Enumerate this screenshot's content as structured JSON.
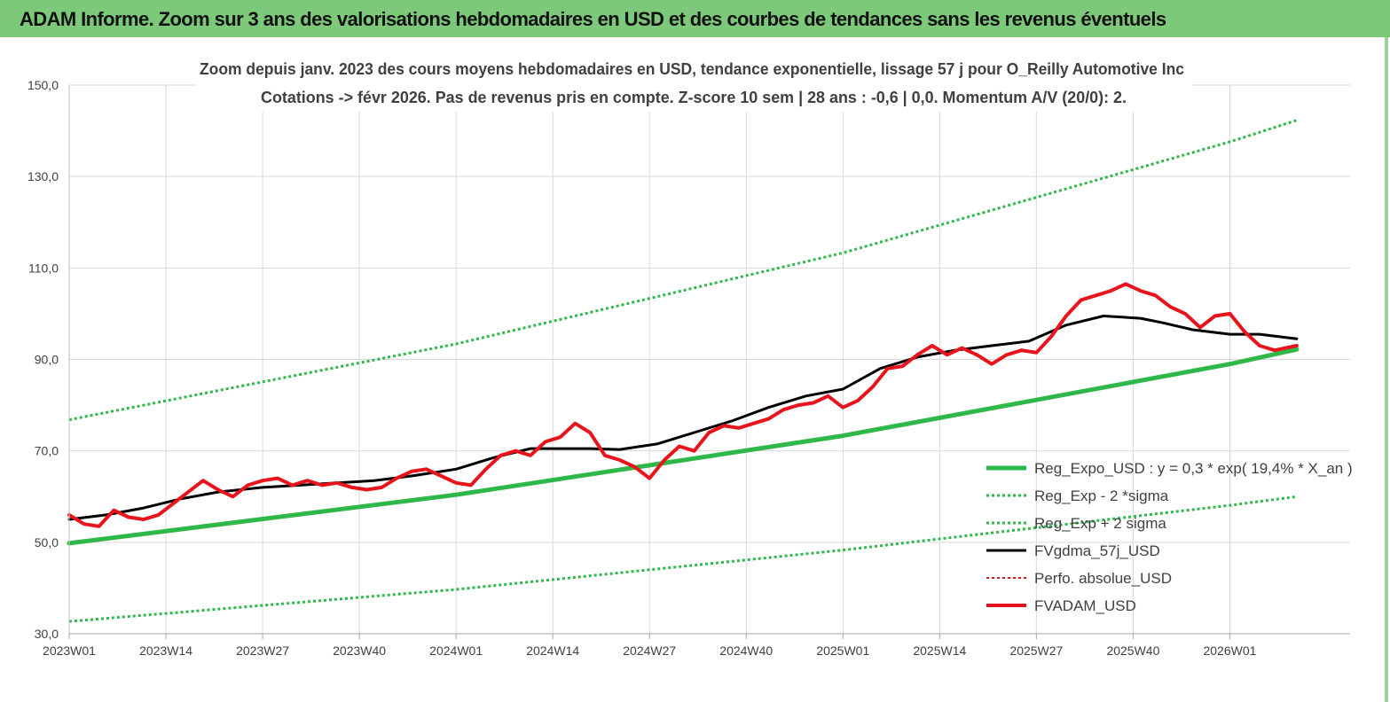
{
  "banner": {
    "title": "ADAM Informe. Zoom sur 3 ans des valorisations hebdomadaires en USD et des courbes de tendances sans les revenus éventuels"
  },
  "colors": {
    "banner_bg": "#7dc97a",
    "trend_green": "#2fb84a",
    "gdma_black": "#000000",
    "adam_red": "#e8141b",
    "grid": "#d9d9d9"
  },
  "chart_data": {
    "type": "line",
    "title_line1": "Zoom depuis janv. 2023 des cours moyens hebdomadaires en USD, tendance exponentielle, lissage 57 j pour O_Reilly Automotive Inc",
    "title_line2": "Cotations -> févr 2026. Pas de revenus pris en compte. Z-score 10 sem  | 28 ans : -0,6 | 0,0. Momentum A/V (20/0): 2.",
    "xlabel": "",
    "ylabel": "",
    "ylim": [
      30,
      150
    ],
    "yticks": [
      "30,0",
      "50,0",
      "70,0",
      "90,0",
      "110,0",
      "130,0",
      "150,0"
    ],
    "x_range_weeks": [
      0,
      160
    ],
    "xticks": [
      {
        "week": 0,
        "label": "2023W01"
      },
      {
        "week": 13,
        "label": "2023W14"
      },
      {
        "week": 26,
        "label": "2023W27"
      },
      {
        "week": 39,
        "label": "2023W40"
      },
      {
        "week": 52,
        "label": "2024W01"
      },
      {
        "week": 65,
        "label": "2024W14"
      },
      {
        "week": 78,
        "label": "2024W27"
      },
      {
        "week": 91,
        "label": "2024W40"
      },
      {
        "week": 104,
        "label": "2025W01"
      },
      {
        "week": 117,
        "label": "2025W14"
      },
      {
        "week": 130,
        "label": "2025W27"
      },
      {
        "week": 143,
        "label": "2025W40"
      },
      {
        "week": 156,
        "label": "2026W01"
      }
    ],
    "grid": true,
    "legend_position": "bottom-right",
    "legend": [
      {
        "label": "Reg_Expo_USD : y = 0,3  * exp( 19,4% *  X_an )",
        "color": "#2fb84a",
        "style": "solid",
        "width": 5
      },
      {
        "label": "Reg_Exp - 2 *sigma",
        "color": "#2fb84a",
        "style": "dotted",
        "width": 3
      },
      {
        "label": "Reg_Exp + 2 sigma",
        "color": "#2fb84a",
        "style": "dotted",
        "width": 3
      },
      {
        "label": "FVgdma_57j_USD",
        "color": "#000000",
        "style": "solid",
        "width": 3
      },
      {
        "label": "Perfo. absolue_USD",
        "color": "#e8141b",
        "style": "dotted",
        "width": 2
      },
      {
        "label": "FVADAM_USD",
        "color": "#e8141b",
        "style": "solid",
        "width": 4
      }
    ],
    "series": [
      {
        "name": "Reg_Expo_USD : y = 0,3  * exp( 19,4% *  X_an )",
        "style": "solid",
        "color": "#2fb84a",
        "x": [
          0,
          52,
          104,
          156,
          165
        ],
        "y": [
          49.8,
          60.4,
          73.3,
          89.0,
          92.2
        ]
      },
      {
        "name": "Reg_Exp + 2 sigma",
        "style": "dotted",
        "color": "#2fb84a",
        "x": [
          0,
          52,
          104,
          156,
          165
        ],
        "y": [
          76.8,
          93.4,
          113.3,
          137.6,
          142.3
        ]
      },
      {
        "name": "Reg_Exp - 2 *sigma",
        "style": "dotted",
        "color": "#2fb84a",
        "x": [
          0,
          52,
          104,
          156,
          165
        ],
        "y": [
          32.7,
          39.7,
          48.3,
          58.1,
          60.0
        ]
      },
      {
        "name": "FVgdma_57j_USD",
        "style": "solid",
        "color": "#000000",
        "x": [
          0,
          5,
          10,
          15,
          20,
          26,
          31,
          36,
          41,
          46,
          52,
          57,
          62,
          66,
          70,
          74,
          79,
          84,
          89,
          94,
          99,
          104,
          109,
          114,
          119,
          124,
          129,
          134,
          139,
          144,
          147,
          151,
          156,
          160,
          165
        ],
        "y": [
          55.0,
          56.0,
          57.5,
          59.5,
          61.0,
          62.0,
          62.5,
          63.0,
          63.5,
          64.5,
          66.0,
          68.5,
          70.5,
          70.5,
          70.5,
          70.3,
          71.5,
          74.0,
          76.5,
          79.5,
          82.0,
          83.5,
          88.0,
          90.5,
          92.0,
          93.0,
          94.0,
          97.5,
          99.5,
          99.0,
          98.0,
          96.5,
          95.5,
          95.5,
          94.5
        ]
      },
      {
        "name": "FVADAM_USD",
        "style": "solid",
        "color": "#e8141b",
        "x": [
          0,
          2,
          4,
          6,
          8,
          10,
          12,
          14,
          16,
          18,
          20,
          22,
          24,
          26,
          28,
          30,
          32,
          34,
          36,
          38,
          40,
          42,
          44,
          46,
          48,
          50,
          52,
          54,
          56,
          58,
          60,
          62,
          64,
          66,
          68,
          70,
          72,
          74,
          76,
          78,
          80,
          82,
          84,
          86,
          88,
          90,
          92,
          94,
          96,
          98,
          100,
          102,
          104,
          106,
          108,
          110,
          112,
          114,
          116,
          118,
          120,
          122,
          124,
          126,
          128,
          130,
          132,
          134,
          136,
          138,
          140,
          142,
          144,
          146,
          148,
          150,
          152,
          154,
          156,
          158,
          160,
          162,
          165
        ],
        "y": [
          56.0,
          54.0,
          53.5,
          57.0,
          55.5,
          55.0,
          56.0,
          58.5,
          61.0,
          63.5,
          61.5,
          60.0,
          62.5,
          63.5,
          64.0,
          62.5,
          63.5,
          62.5,
          63.0,
          62.0,
          61.5,
          62.0,
          64.0,
          65.5,
          66.0,
          64.5,
          63.0,
          62.5,
          66.0,
          69.0,
          70.0,
          69.0,
          72.0,
          73.0,
          76.0,
          74.0,
          69.0,
          68.0,
          66.5,
          64.0,
          68.0,
          71.0,
          70.0,
          74.0,
          75.5,
          75.0,
          76.0,
          77.0,
          79.0,
          80.0,
          80.5,
          82.0,
          79.5,
          81.0,
          84.0,
          88.0,
          88.5,
          91.0,
          93.0,
          91.0,
          92.5,
          91.0,
          89.0,
          91.0,
          92.0,
          91.5,
          95.0,
          99.5,
          103.0,
          104.0,
          105.0,
          106.5,
          105.0,
          104.0,
          101.5,
          100.0,
          97.0,
          99.5,
          100.0,
          96.0,
          93.0,
          92.0,
          93.0
        ]
      }
    ]
  }
}
